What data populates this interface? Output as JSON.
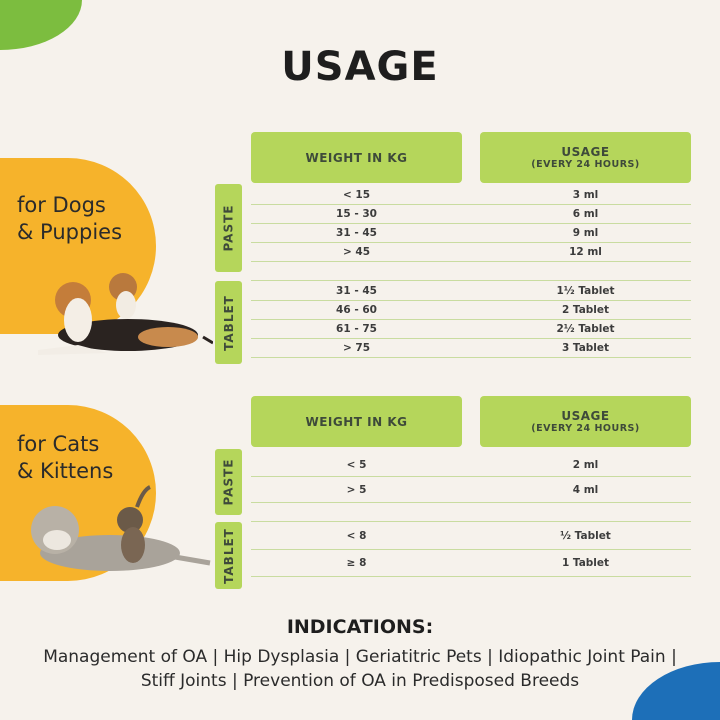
{
  "title": "USAGE",
  "colors": {
    "accent_green": "#b5d65b",
    "orange": "#f6b32b",
    "corner_green": "#7cbd3f",
    "corner_blue": "#1d6fb8",
    "background": "#f6f2ec"
  },
  "dogs": {
    "label_line1": "for Dogs",
    "label_line2": "& Puppies",
    "header": {
      "weight": "WEIGHT IN KG",
      "usage": "USAGE",
      "usage_sub": "(EVERY 24 HOURS)"
    },
    "paste_label": "PASTE",
    "tablet_label": "TABLET",
    "paste": [
      {
        "weight": "< 15",
        "usage": "3 ml"
      },
      {
        "weight": "15 - 30",
        "usage": "6 ml"
      },
      {
        "weight": "31 - 45",
        "usage": "9 ml"
      },
      {
        "weight": "> 45",
        "usage": "12 ml"
      }
    ],
    "tablet": [
      {
        "weight": "31 - 45",
        "usage": "1½ Tablet"
      },
      {
        "weight": "46 - 60",
        "usage": "2 Tablet"
      },
      {
        "weight": "61 - 75",
        "usage": "2½ Tablet"
      },
      {
        "weight": "> 75",
        "usage": "3 Tablet"
      }
    ]
  },
  "cats": {
    "label_line1": "for Cats",
    "label_line2": "& Kittens",
    "header": {
      "weight": "WEIGHT IN KG",
      "usage": "USAGE",
      "usage_sub": "(EVERY 24 HOURS)"
    },
    "paste_label": "PASTE",
    "tablet_label": "TABLET",
    "paste": [
      {
        "weight": "< 5",
        "usage": "2 ml"
      },
      {
        "weight": "> 5",
        "usage": "4 ml"
      }
    ],
    "tablet": [
      {
        "weight": "< 8",
        "usage": "½ Tablet"
      },
      {
        "weight": "≥ 8",
        "usage": "1 Tablet"
      }
    ]
  },
  "indications": {
    "title": "INDICATIONS:",
    "text": "Management of OA | Hip Dysplasia | Geriatitric Pets | Idiopathic Joint Pain | Stiff Joints | Prevention of OA in Predisposed Breeds"
  }
}
